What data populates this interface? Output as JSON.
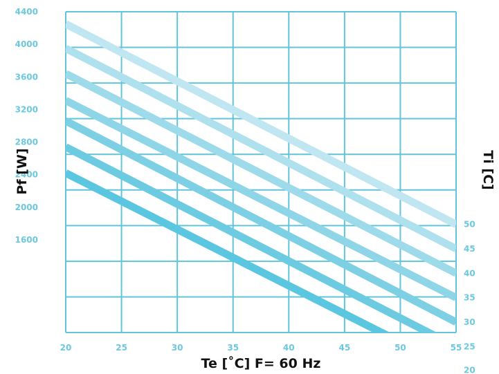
{
  "chart_data": {
    "type": "line",
    "title": "",
    "xlabel": "Te [˚C] F= 60 Hz",
    "ylabel": "Pf [W]",
    "y2label": "Ti [C]",
    "xlim": [
      20,
      55
    ],
    "x_ticks": [
      "20",
      "25",
      "30",
      "35",
      "40",
      "45",
      "50",
      "55"
    ],
    "y_ticks": [
      "1600",
      "2000",
      "2400",
      "2800",
      "3200",
      "3600",
      "4000",
      "4400"
    ],
    "grid": true,
    "series": [
      {
        "name": "20",
        "x": [
          20,
          55
        ],
        "y": [
          2420,
          0
        ],
        "color": "#5bc6df"
      },
      {
        "name": "25",
        "x": [
          20,
          55
        ],
        "y": [
          2740,
          290
        ],
        "color": "#6ccbe1"
      },
      {
        "name": "30",
        "x": [
          20,
          55
        ],
        "y": [
          3060,
          590
        ],
        "color": "#7dd0e4"
      },
      {
        "name": "35",
        "x": [
          20,
          55
        ],
        "y": [
          3310,
          890
        ],
        "color": "#8ed6e7"
      },
      {
        "name": "40",
        "x": [
          20,
          55
        ],
        "y": [
          3640,
          1190
        ],
        "color": "#9edbea"
      },
      {
        "name": "45",
        "x": [
          20,
          55
        ],
        "y": [
          3950,
          1490
        ],
        "color": "#aee0ed"
      },
      {
        "name": "50",
        "x": [
          20,
          55
        ],
        "y": [
          4250,
          1790
        ],
        "color": "#bfe6f1"
      }
    ],
    "colors": {
      "grid": "#5fc4dc",
      "tick_text": "#6cc8de",
      "axis_title": "#111111"
    }
  }
}
